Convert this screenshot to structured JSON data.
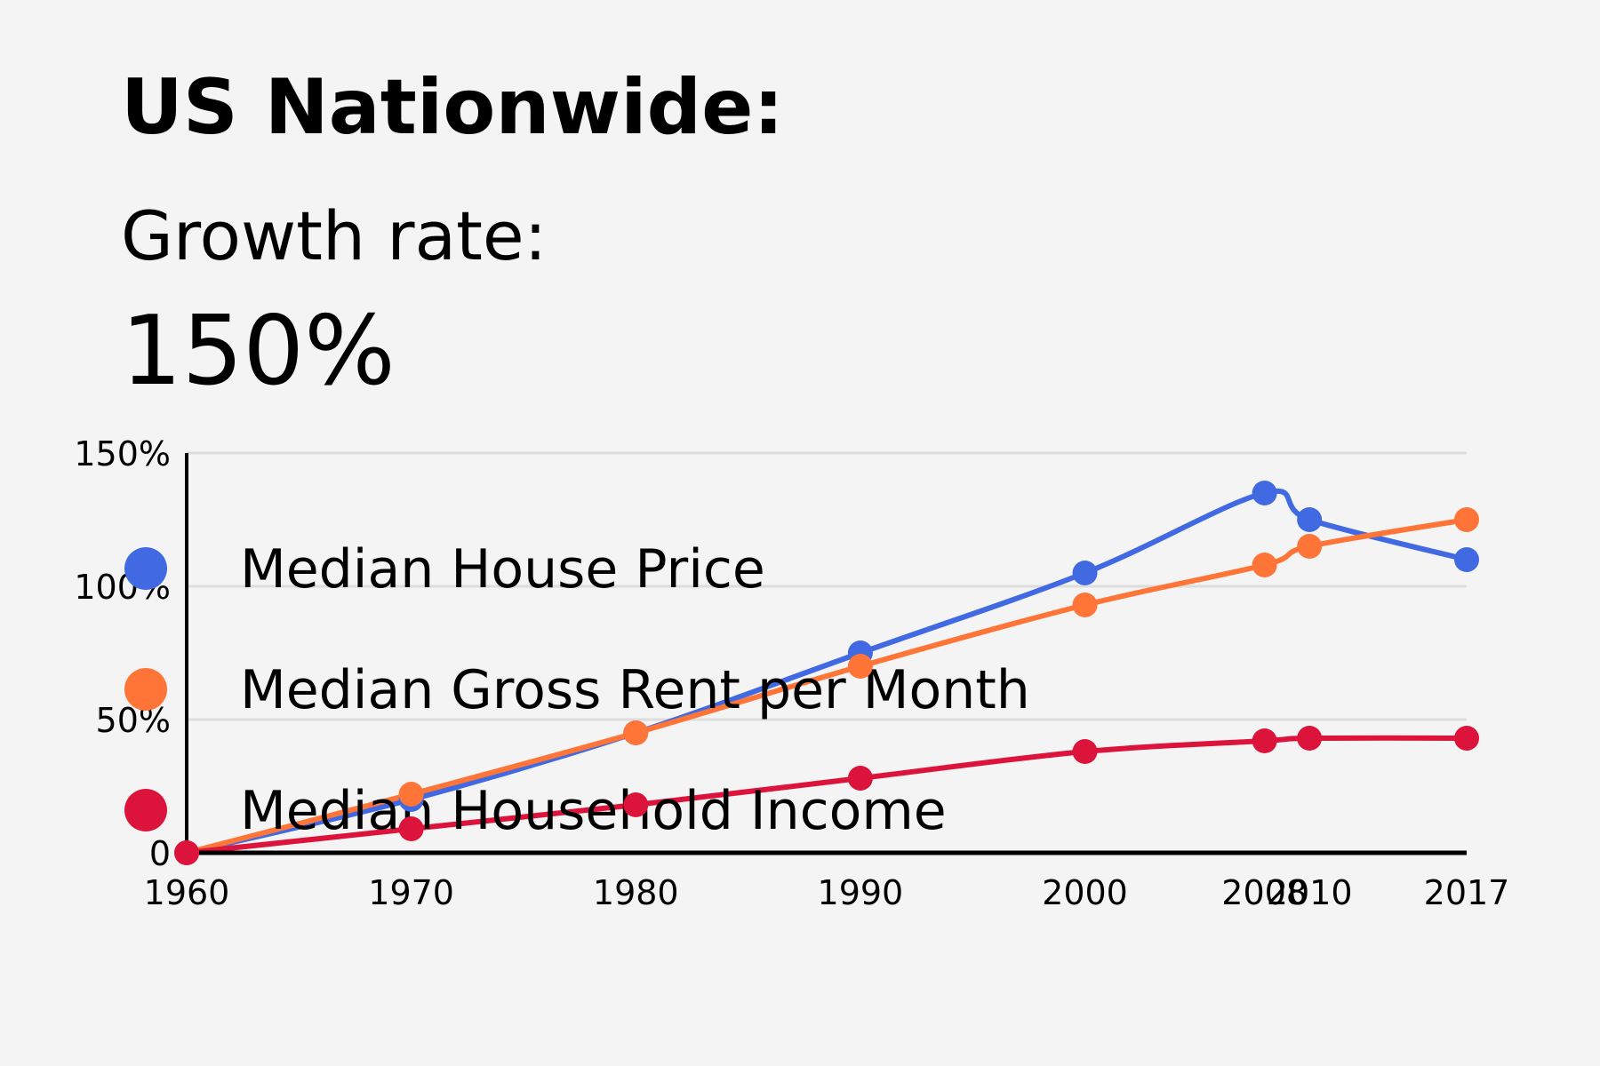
{
  "header": {
    "title": "US Nationwide:",
    "subtitle": "Growth rate:",
    "headline_value": "150%"
  },
  "chart_data": {
    "type": "line",
    "x": [
      "1960",
      "1970",
      "1980",
      "1990",
      "2000",
      "2008",
      "2010",
      "2017"
    ],
    "x_numeric": [
      1960,
      1970,
      1980,
      1990,
      2000,
      2008,
      2010,
      2017
    ],
    "ylim": [
      0,
      150
    ],
    "y_ticks": [
      0,
      50,
      100,
      150
    ],
    "y_tick_labels": [
      "0",
      "50%",
      "100%",
      "150%"
    ],
    "grid": true,
    "legend_position": "inside-left",
    "series": [
      {
        "name": "Median House Price",
        "color": "#4169e1",
        "values": [
          0,
          20,
          45,
          75,
          105,
          135,
          125,
          110
        ]
      },
      {
        "name": "Median Gross Rent per Month",
        "color": "#ff7538",
        "values": [
          0,
          22,
          45,
          70,
          93,
          108,
          115,
          125
        ]
      },
      {
        "name": "Median Household Income",
        "color": "#dc143c",
        "values": [
          0,
          9,
          18,
          28,
          38,
          42,
          43,
          43
        ]
      }
    ]
  }
}
